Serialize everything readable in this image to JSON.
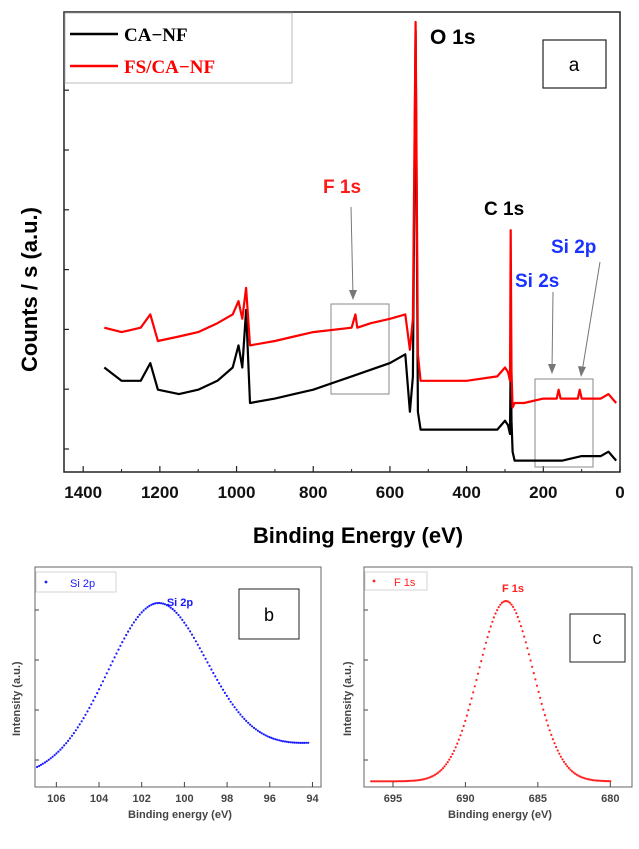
{
  "chart_data": [
    {
      "panel": "a",
      "type": "line",
      "xlabel": "Binding Energy (eV)",
      "ylabel": "Counts / s (a.u.)",
      "xlim": [
        1450,
        0
      ],
      "x_ticks": [
        "1400",
        "1200",
        "1000",
        "800",
        "600",
        "400",
        "200",
        "0"
      ],
      "legend": [
        "CA−NF",
        "FS/CA−NF"
      ],
      "legend_placement": "top-left",
      "colors": {
        "CA-NF": "#000000",
        "FS/CA-NF": "#ff0000"
      },
      "annotations": {
        "o1s": "O 1s",
        "c1s": "C 1s",
        "f1s": "F 1s",
        "si2s": "Si 2s",
        "si2p": "Si 2p"
      },
      "series": [
        {
          "name": "CA−NF",
          "x": [
            1345,
            1300,
            1250,
            1225,
            1205,
            1150,
            1100,
            1050,
            1010,
            995,
            985,
            975,
            965,
            900,
            850,
            800,
            700,
            600,
            560,
            548,
            540,
            533,
            527,
            520,
            400,
            320,
            300,
            292,
            287,
            285,
            283,
            280,
            275,
            250,
            200,
            150,
            100,
            50,
            30,
            20,
            10
          ],
          "y": [
            0.22,
            0.19,
            0.19,
            0.23,
            0.17,
            0.16,
            0.17,
            0.19,
            0.22,
            0.27,
            0.22,
            0.35,
            0.14,
            0.15,
            0.16,
            0.17,
            0.2,
            0.23,
            0.25,
            0.12,
            0.2,
            0.98,
            0.12,
            0.08,
            0.08,
            0.08,
            0.1,
            0.09,
            0.07,
            0.25,
            0.1,
            0.03,
            0.01,
            0.01,
            0.01,
            0.01,
            0.02,
            0.02,
            0.03,
            0.02,
            0.01
          ]
        },
        {
          "name": "FS/CA−NF",
          "x": [
            1345,
            1300,
            1250,
            1225,
            1205,
            1150,
            1100,
            1050,
            1010,
            995,
            985,
            975,
            965,
            900,
            850,
            800,
            700,
            690,
            685,
            650,
            600,
            560,
            548,
            540,
            533,
            527,
            520,
            400,
            320,
            300,
            292,
            287,
            285,
            283,
            280,
            275,
            250,
            200,
            165,
            160,
            155,
            110,
            105,
            100,
            50,
            30,
            20,
            10
          ],
          "y": [
            0.31,
            0.3,
            0.31,
            0.34,
            0.28,
            0.29,
            0.3,
            0.32,
            0.34,
            0.37,
            0.33,
            0.4,
            0.27,
            0.28,
            0.29,
            0.3,
            0.31,
            0.34,
            0.31,
            0.32,
            0.33,
            0.34,
            0.26,
            0.33,
            1.0,
            0.25,
            0.19,
            0.19,
            0.2,
            0.22,
            0.21,
            0.19,
            0.53,
            0.21,
            0.13,
            0.14,
            0.14,
            0.15,
            0.15,
            0.17,
            0.15,
            0.15,
            0.17,
            0.15,
            0.15,
            0.16,
            0.15,
            0.14
          ]
        }
      ]
    },
    {
      "panel": "b",
      "type": "scatter",
      "xlabel": "Binding energy (eV)",
      "ylabel": "Intensity (a.u.)",
      "xlim": [
        107,
        93.6
      ],
      "x_ticks": [
        "106",
        "104",
        "102",
        "100",
        "98",
        "96",
        "94"
      ],
      "legend": [
        "Si  2p"
      ],
      "peak_label": "Si 2p",
      "color": "#1a1aff",
      "peak_center": 101.2,
      "peak_sigma": 2.3,
      "baseline_left": 0.05,
      "baseline_right": 0.22,
      "x_range": [
        106.9,
        94.2
      ]
    },
    {
      "panel": "c",
      "type": "scatter",
      "xlabel": "Binding energy (eV)",
      "ylabel": "Intensity (a.u.)",
      "xlim": [
        697,
        678.5
      ],
      "x_ticks": [
        "695",
        "690",
        "685",
        "680"
      ],
      "legend": [
        "F 1s"
      ],
      "peak_label": "F 1s",
      "color": "#ff2020",
      "peak_center": 687.2,
      "peak_sigma": 1.9,
      "baseline_left": 0.02,
      "baseline_right": 0.02,
      "x_range": [
        696.5,
        680.0
      ]
    }
  ]
}
